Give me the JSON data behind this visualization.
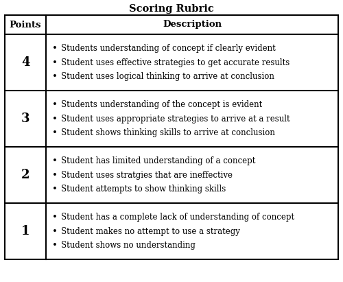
{
  "title": "Scoring Rubric",
  "header": [
    "Points",
    "Description"
  ],
  "rows": [
    {
      "point": "4",
      "bullets": [
        "Students understanding of concept if clearly evident",
        "Student uses effective strategies to get accurate results",
        "Student uses logical thinking to arrive at conclusion"
      ]
    },
    {
      "point": "3",
      "bullets": [
        "Students understanding of the concept is evident",
        "Student uses appropriate strategies to arrive at a result",
        "Student shows thinking skills to arrive at conclusion"
      ]
    },
    {
      "point": "2",
      "bullets": [
        "Student has limited understanding of a concept",
        "Student uses stratgies that are ineffective",
        "Student attempts to show thinking skills"
      ]
    },
    {
      "point": "1",
      "bullets": [
        "Student has a complete lack of understanding of concept",
        "Student makes no attempt to use a strategy",
        "Student shows no understanding"
      ]
    }
  ],
  "bg_color": "#ffffff",
  "border_color": "#000000",
  "title_fontsize": 10.5,
  "header_fontsize": 9.5,
  "body_fontsize": 8.5,
  "point_fontsize": 13,
  "fig_width": 5.0,
  "fig_height": 4.11,
  "dpi": 100
}
